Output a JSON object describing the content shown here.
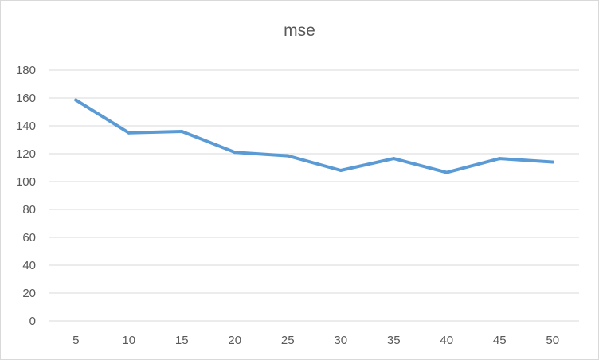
{
  "chart_data": {
    "type": "line",
    "title": "mse",
    "categories": [
      "5",
      "10",
      "15",
      "20",
      "25",
      "30",
      "35",
      "40",
      "45",
      "50"
    ],
    "series": [
      {
        "values": [
          158.5,
          135,
          136,
          121,
          118.5,
          108,
          116.5,
          106.5,
          116.5,
          114
        ],
        "color": "#5b9bd5"
      }
    ],
    "ylim": [
      0,
      180
    ],
    "yticks": [
      0,
      20,
      40,
      60,
      80,
      100,
      120,
      140,
      160,
      180
    ],
    "grid": true,
    "legend": "none"
  }
}
